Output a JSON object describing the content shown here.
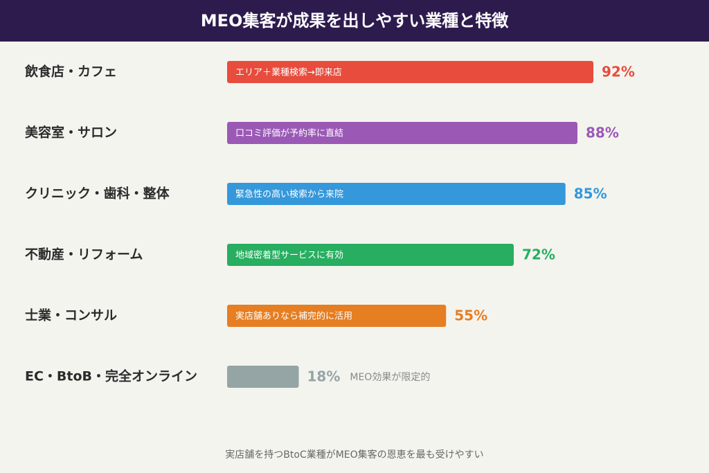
{
  "chart_data": {
    "type": "bar",
    "orientation": "horizontal",
    "title": "MEO集客が成果を出しやすい業種と特徴",
    "categories": [
      "飲食店・カフェ",
      "美容室・サロン",
      "クリニック・歯科・整体",
      "不動産・リフォーム",
      "士業・コンサル",
      "EC・BtoB・完全オンライン"
    ],
    "values": [
      92,
      88,
      85,
      72,
      55,
      18
    ],
    "value_labels": [
      "92%",
      "88%",
      "85%",
      "72%",
      "55%",
      "18%"
    ],
    "colors": [
      "#e74c3c",
      "#9b59b6",
      "#3498db",
      "#27ae60",
      "#e67e22",
      "#95a5a6"
    ],
    "notes": [
      "エリア＋業種検索→即来店",
      "口コミ評価が予約率に直結",
      "緊急性の高い検索から来院",
      "地域密着型サービスに有効",
      "実店舗ありなら補完的に活用",
      "MEO効果が限定的"
    ],
    "xlim": [
      0,
      100
    ],
    "footnote": "実店舗を持つBtoC業種がMEO集客の恩恵を最も受けやすい"
  }
}
